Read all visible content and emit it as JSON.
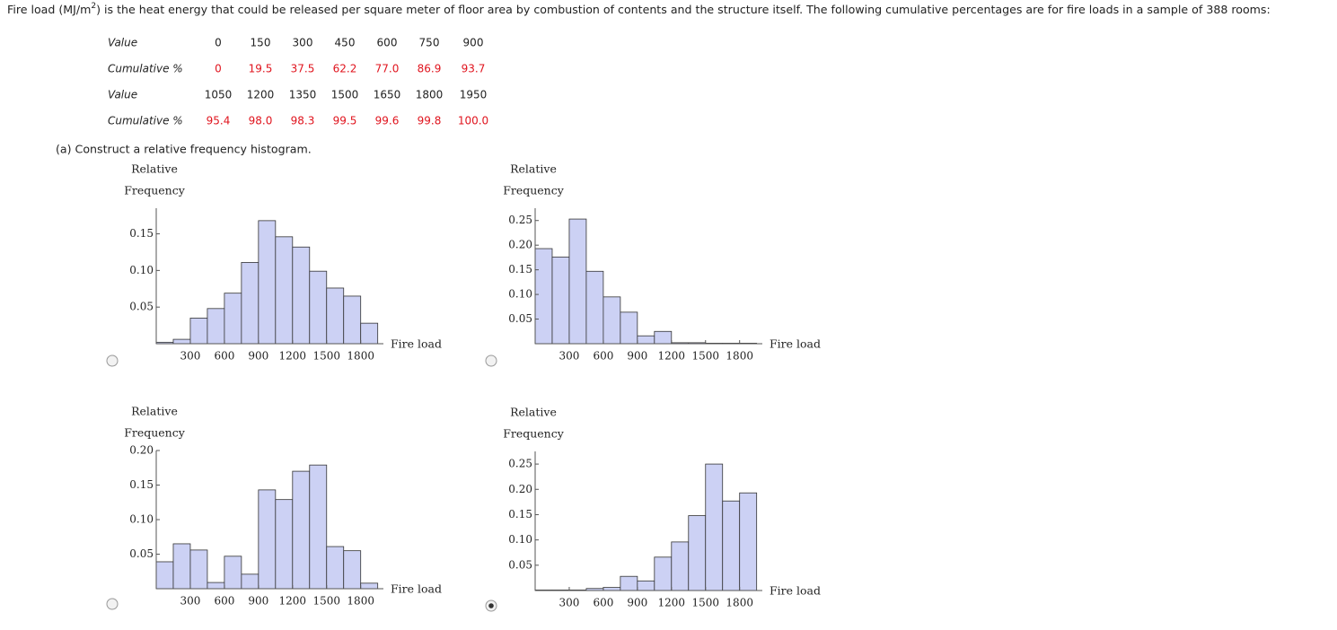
{
  "intro": {
    "before": "Fire load (MJ/m",
    "superscript": "2",
    "after": ") is the heat energy that could be released per square meter of floor area by combustion of contents and the structure itself. The following cumulative percentages are for fire loads in a sample of 388 rooms:"
  },
  "table": {
    "rows": [
      {
        "label": "Value",
        "cells": [
          "0",
          "150",
          "300",
          "450",
          "600",
          "750",
          "900"
        ]
      },
      {
        "label": "Cumulative %",
        "cells": [
          "0",
          "19.5",
          "37.5",
          "62.2",
          "77.0",
          "86.9",
          "93.7"
        ]
      },
      {
        "label": "Value",
        "cells": [
          "1050",
          "1200",
          "1350",
          "1500",
          "1650",
          "1800",
          "1950"
        ]
      },
      {
        "label": "Cumulative %",
        "cells": [
          "95.4",
          "98.0",
          "98.3",
          "99.5",
          "99.6",
          "99.8",
          "100.0"
        ]
      }
    ]
  },
  "question": "(a) Construct a relative frequency histogram.",
  "selected_option": 3,
  "chart_data": [
    {
      "type": "histogram",
      "y_label": [
        "Relative",
        "Frequency"
      ],
      "x_label": "Fire load",
      "color": "#ccd1f4",
      "bins": [
        0,
        150,
        300,
        450,
        600,
        750,
        900,
        1050,
        1200,
        1350,
        1500,
        1650,
        1800,
        1950
      ],
      "values": [
        0.002,
        0.006,
        0.035,
        0.048,
        0.069,
        0.111,
        0.168,
        0.146,
        0.132,
        0.099,
        0.076,
        0.065,
        0.028
      ],
      "xlim": [
        0,
        2000
      ],
      "xticks": [
        300,
        600,
        900,
        1200,
        1500,
        1800
      ],
      "ylim": [
        0,
        0.185
      ],
      "yticks": [
        0.05,
        {
          "value": 0.1,
          "label": "0.10"
        },
        0.15
      ]
    },
    {
      "type": "histogram",
      "y_label": [
        "Relative",
        "Frequency"
      ],
      "x_label": "Fire load",
      "color": "#ccd1f4",
      "bins": [
        0,
        150,
        300,
        450,
        600,
        750,
        900,
        1050,
        1200,
        1350,
        1500,
        1650,
        1800,
        1950
      ],
      "values": [
        0.193,
        0.176,
        0.253,
        0.147,
        0.095,
        0.064,
        0.016,
        0.025,
        0.002,
        0.002,
        0.001,
        0.001,
        0.001
      ],
      "xlim": [
        0,
        2000
      ],
      "xticks": [
        300,
        600,
        900,
        1200,
        1500,
        1800
      ],
      "ylim": [
        0,
        0.275
      ],
      "yticks": [
        0.05,
        {
          "value": 0.1,
          "label": "0.10"
        },
        0.15,
        {
          "value": 0.2,
          "label": "0.20"
        },
        0.25
      ]
    },
    {
      "type": "histogram",
      "y_label": [
        "Relative",
        "Frequency"
      ],
      "x_label": "Fire load",
      "color": "#ccd1f4",
      "bins": [
        0,
        150,
        300,
        450,
        600,
        750,
        900,
        1050,
        1200,
        1350,
        1500,
        1650,
        1800,
        1950
      ],
      "values": [
        0.039,
        0.065,
        0.056,
        0.009,
        0.047,
        0.021,
        0.143,
        0.129,
        0.17,
        0.179,
        0.061,
        0.055,
        0.008
      ],
      "xlim": [
        0,
        2000
      ],
      "xticks": [
        300,
        600,
        900,
        1200,
        1500,
        1800
      ],
      "ylim": [
        0,
        0.2
      ],
      "yticks": [
        0.05,
        {
          "value": 0.1,
          "label": "0.10"
        },
        0.15,
        {
          "value": 0.2,
          "label": "0.20"
        }
      ]
    },
    {
      "type": "histogram",
      "y_label": [
        "Relative",
        "Frequency"
      ],
      "x_label": "Fire load",
      "color": "#ccd1f4",
      "bins": [
        0,
        150,
        300,
        450,
        600,
        750,
        900,
        1050,
        1200,
        1350,
        1500,
        1650,
        1800,
        1950
      ],
      "values": [
        0.001,
        0.001,
        0.001,
        0.004,
        0.006,
        0.028,
        0.019,
        0.066,
        0.096,
        0.148,
        0.25,
        0.177,
        0.193
      ],
      "xlim": [
        0,
        2000
      ],
      "xticks": [
        300,
        600,
        900,
        1200,
        1500,
        1800
      ],
      "ylim": [
        0,
        0.275
      ],
      "yticks": [
        0.05,
        {
          "value": 0.1,
          "label": "0.10"
        },
        0.15,
        {
          "value": 0.2,
          "label": "0.20"
        },
        0.25
      ]
    }
  ]
}
